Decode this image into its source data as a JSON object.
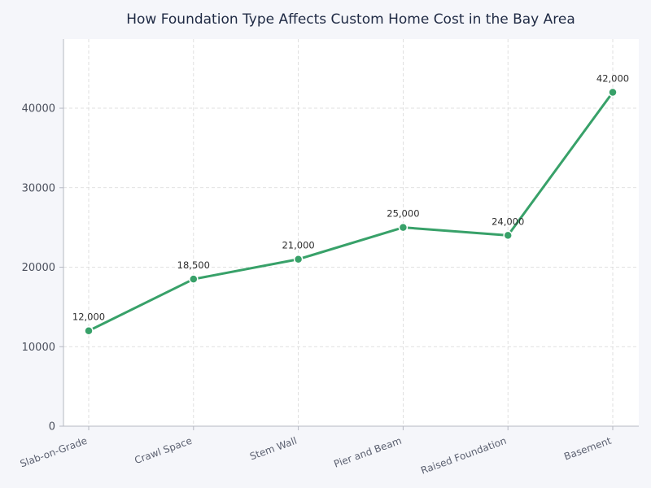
{
  "chart_data": {
    "type": "line",
    "title": "How Foundation Type Affects Custom Home Cost in the Bay Area",
    "xlabel": "",
    "ylabel": "",
    "categories": [
      "Slab-on-Grade",
      "Crawl Space",
      "Stem Wall",
      "Pier and Beam",
      "Raised Foundation",
      "Basement"
    ],
    "series": [
      {
        "values": [
          12000,
          18500,
          21000,
          25000,
          24000,
          42000
        ],
        "labels": [
          "12,000",
          "18,500",
          "21,000",
          "25,000",
          "24,000",
          "42,000"
        ],
        "color": "#38a169"
      }
    ],
    "ylim": [
      0,
      48700
    ],
    "yticks": [
      0,
      10000,
      20000,
      30000,
      40000
    ],
    "ytick_labels": [
      "0",
      "10000",
      "20000",
      "30000",
      "40000"
    ],
    "grid": true,
    "plot_background": "#ffffff",
    "page_background": "#f5f6fa"
  }
}
